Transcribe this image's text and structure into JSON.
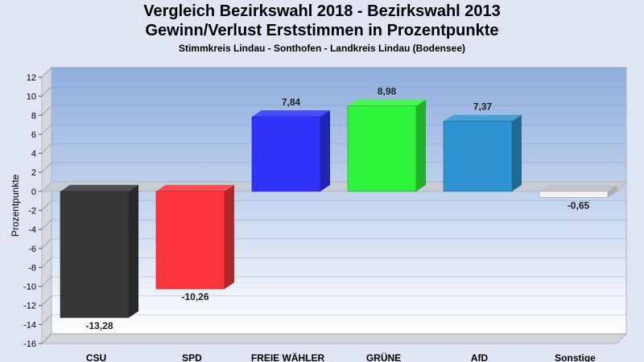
{
  "chart_data": {
    "type": "bar",
    "title": "Vergleich Bezirkswahl 2018 - Bezirkswahl 2013",
    "subtitle": "Gewinn/Verlust Erststimmen in Prozentpunkte",
    "subtitle2": "Stimmkreis Lindau - Sonthofen - Landkreis Lindau (Bodensee)",
    "xlabel": "",
    "ylabel": "Prozentpunkte",
    "ylim": [
      -16,
      12
    ],
    "yticks": [
      12,
      10,
      8,
      6,
      4,
      2,
      0,
      -2,
      -4,
      -6,
      -8,
      -10,
      -12,
      -14,
      -16
    ],
    "grid": true,
    "categories": [
      "CSU",
      "SPD",
      "FREIE WÄHLER",
      "GRÜNE",
      "AfD",
      "Sonstige"
    ],
    "values": [
      -13.28,
      -10.26,
      7.84,
      8.98,
      7.37,
      -0.65
    ],
    "value_labels": [
      "-13,28",
      "-10,26",
      "7,84",
      "8,98",
      "7,37",
      "-0,65"
    ],
    "colors": [
      "#353739",
      "#fb343d",
      "#2f32fa",
      "#2ef43b",
      "#2e93d1",
      "#f3f4f7"
    ]
  }
}
